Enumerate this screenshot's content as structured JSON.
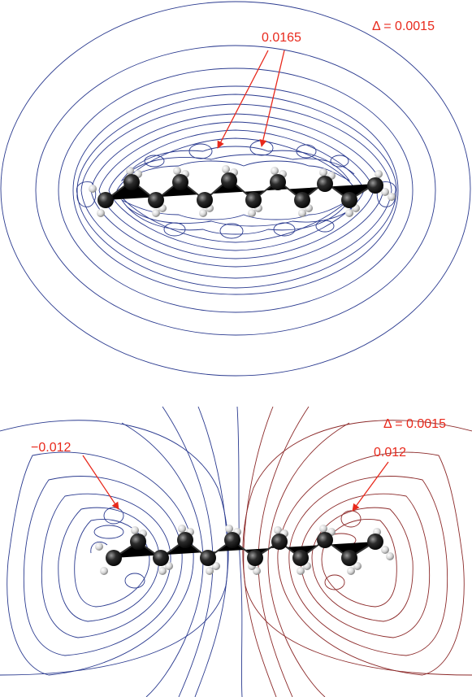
{
  "top_panel": {
    "delta_label": "Δ = 0.0015",
    "extremum_label": "0.0165"
  },
  "bottom_panel": {
    "delta_label": "Δ = 0.0015",
    "min_label": "−0.012",
    "max_label": "0.012"
  },
  "colors": {
    "negative_contour": "#2a3a8f",
    "positive_contour": "#8c2a2a",
    "annotation": "#e8291c",
    "carbon_atom": "#2b2b2b",
    "hydrogen_atom": "#dcdcdc"
  }
}
